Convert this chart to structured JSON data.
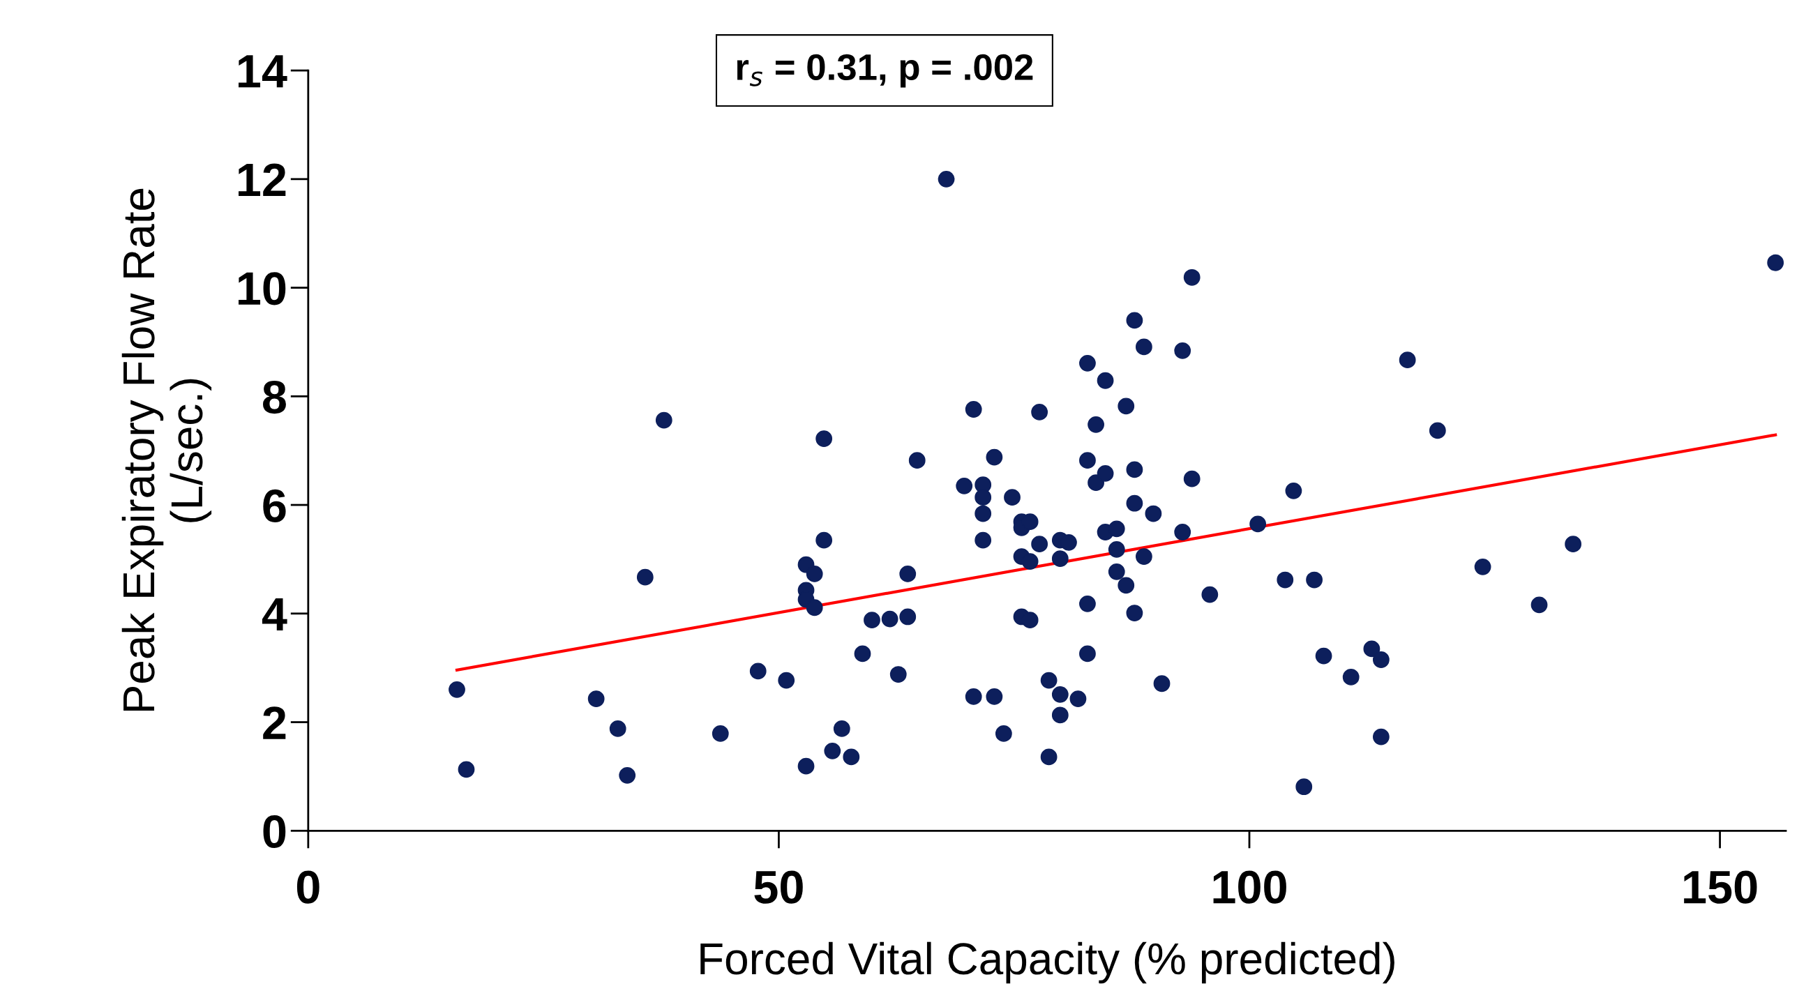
{
  "chart_data": {
    "type": "scatter",
    "xlabel": "Forced Vital Capacity (% predicted)",
    "ylabel": "Peak Expiratory Flow Rate\n(L/sec.)",
    "annotations": [
      "r$_{s}$ = 0.31, p = .002"
    ],
    "xlim": [
      0,
      157
    ],
    "ylim": [
      0,
      14
    ],
    "xticks": [
      0,
      50,
      100,
      150
    ],
    "yticks": [
      0,
      2,
      4,
      6,
      8,
      10,
      12,
      14
    ],
    "series": [
      {
        "color": "#0d1f5c",
        "marker": "circle",
        "x": [
          15.8,
          16.8,
          30.6,
          32.9,
          33.9,
          35.8,
          37.8,
          43.8,
          47.8,
          50.8,
          52.9,
          52.9,
          52.9,
          52.9,
          53.8,
          53.8,
          54.8,
          54.8,
          55.7,
          56.7,
          57.7,
          58.9,
          59.9,
          61.8,
          62.7,
          63.7,
          63.7,
          64.7,
          67.8,
          69.7,
          70.7,
          70.7,
          71.7,
          71.7,
          71.7,
          71.7,
          72.9,
          72.9,
          73.9,
          74.8,
          75.8,
          75.8,
          75.8,
          75.8,
          76.7,
          76.7,
          76.7,
          77.7,
          77.7,
          78.7,
          78.7,
          79.9,
          79.9,
          79.9,
          79.9,
          80.8,
          81.8,
          82.8,
          82.8,
          82.8,
          82.8,
          83.7,
          83.7,
          84.7,
          84.7,
          84.7,
          85.9,
          85.9,
          85.9,
          86.9,
          86.9,
          87.8,
          87.8,
          87.8,
          87.8,
          88.8,
          88.8,
          89.8,
          90.7,
          92.9,
          92.9,
          93.9,
          93.9,
          95.8,
          100.9,
          103.8,
          104.7,
          105.8,
          106.9,
          107.9,
          110.8,
          113.0,
          114.0,
          114.0,
          116.8,
          120.0,
          124.8,
          130.8,
          134.4,
          155.9
        ],
        "values": [
          2.6,
          1.13,
          2.43,
          1.88,
          1.02,
          4.67,
          7.56,
          1.79,
          2.94,
          2.77,
          4.9,
          4.43,
          4.26,
          1.19,
          4.73,
          4.11,
          7.22,
          5.35,
          1.47,
          1.88,
          1.36,
          3.26,
          3.88,
          3.9,
          2.88,
          4.73,
          3.94,
          6.82,
          12.0,
          6.35,
          7.76,
          2.47,
          6.37,
          6.14,
          5.84,
          5.35,
          6.88,
          2.47,
          1.79,
          6.14,
          5.69,
          5.58,
          5.05,
          3.94,
          5.69,
          4.96,
          3.88,
          7.71,
          5.28,
          2.77,
          1.36,
          5.35,
          5.01,
          2.51,
          2.13,
          5.31,
          2.43,
          8.61,
          6.82,
          4.18,
          3.26,
          7.48,
          6.41,
          8.29,
          6.58,
          5.5,
          5.56,
          5.18,
          4.77,
          7.82,
          4.52,
          9.4,
          6.65,
          6.03,
          4.01,
          8.91,
          5.05,
          5.84,
          2.71,
          8.84,
          5.5,
          10.19,
          6.48,
          4.35,
          5.65,
          4.62,
          6.26,
          0.81,
          4.62,
          3.22,
          2.83,
          3.35,
          3.15,
          1.73,
          8.67,
          7.37,
          4.86,
          4.16,
          5.28,
          10.46
        ]
      },
      {
        "type": "line",
        "color": "#ff0000",
        "x": [
          15.8,
          155.9
        ],
        "values": [
          2.96,
          7.29
        ]
      }
    ]
  }
}
